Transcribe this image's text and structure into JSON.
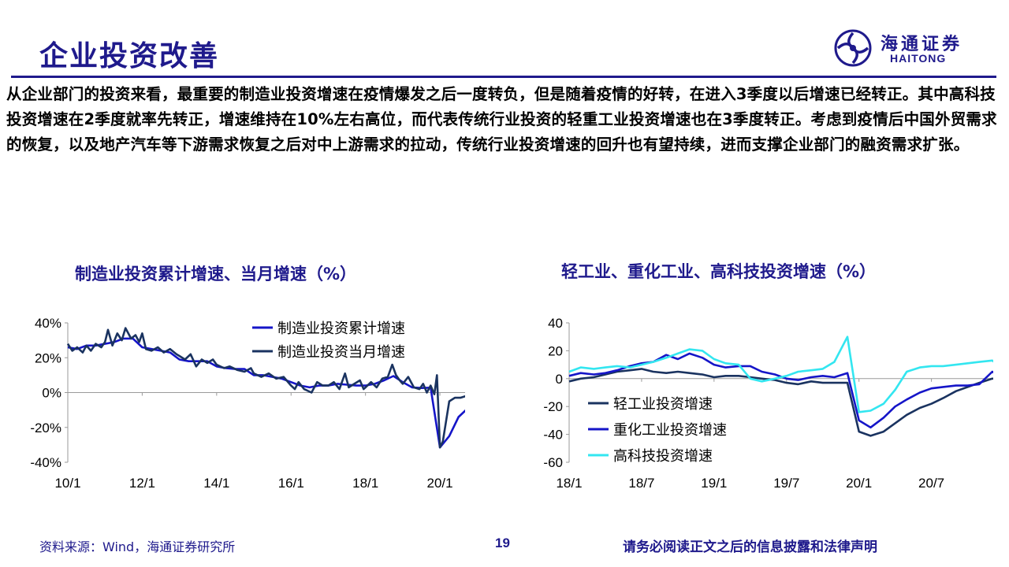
{
  "header": {
    "title": "企业投资改善",
    "logo_cn": "海通证券",
    "logo_en": "HAITONG"
  },
  "body_text": "从企业部门的投资来看，最重要的制造业投资增速在疫情爆发之后一度转负，但是随着疫情的好转，在进入3季度以后增速已经转正。其中高科技投资增速在2季度就率先转正，增速维持在10%左右高位，而代表传统行业投资的轻重工业投资增速也在3季度转正。考虑到疫情后中国外贸需求的恢复，以及地产汽车等下游需求恢复之后对中上游需求的拉动，传统行业投资增速的回升也有望持续，进而支撑企业部门的融资需求扩张。",
  "footer": {
    "source": "资料来源：Wind，海通证券研究所",
    "page": "19",
    "legal": "请务必阅读正文之后的信息披露和法律声明"
  },
  "chart_data": [
    {
      "type": "line",
      "title": "制造业投资累计增速、当月增速（%）",
      "ylim": [
        -40,
        40
      ],
      "yticks": [
        "40%",
        "20%",
        "0%",
        "-20%",
        "-40%"
      ],
      "ytick_values": [
        40,
        20,
        0,
        -20,
        -40
      ],
      "xlim": [
        2010.0,
        2021.1
      ],
      "xtick_labels": [
        "10/1",
        "12/1",
        "14/1",
        "16/1",
        "18/1",
        "20/1"
      ],
      "xtick_values": [
        2010,
        2012,
        2014,
        2016,
        2018,
        2020
      ],
      "legend": "top-right",
      "grid": false,
      "series": [
        {
          "name": "制造业投资累计增速",
          "color": "#1515c8",
          "points": [
            [
              2010.0,
              26
            ],
            [
              2010.25,
              25
            ],
            [
              2010.5,
              27
            ],
            [
              2010.75,
              27
            ],
            [
              2011.0,
              28
            ],
            [
              2011.25,
              29
            ],
            [
              2011.5,
              31
            ],
            [
              2011.75,
              31
            ],
            [
              2012.0,
              26
            ],
            [
              2012.25,
              25
            ],
            [
              2012.5,
              24
            ],
            [
              2012.75,
              23
            ],
            [
              2013.0,
              19
            ],
            [
              2013.25,
              18
            ],
            [
              2013.5,
              18
            ],
            [
              2013.75,
              18
            ],
            [
              2014.0,
              15
            ],
            [
              2014.25,
              14
            ],
            [
              2014.5,
              13.5
            ],
            [
              2014.75,
              13.5
            ],
            [
              2015.0,
              10
            ],
            [
              2015.25,
              10
            ],
            [
              2015.5,
              9
            ],
            [
              2015.75,
              8
            ],
            [
              2016.0,
              6
            ],
            [
              2016.25,
              4
            ],
            [
              2016.5,
              3
            ],
            [
              2016.75,
              4
            ],
            [
              2017.0,
              4
            ],
            [
              2017.25,
              5
            ],
            [
              2017.5,
              4.5
            ],
            [
              2017.75,
              4
            ],
            [
              2018.0,
              4
            ],
            [
              2018.25,
              5
            ],
            [
              2018.5,
              7
            ],
            [
              2018.75,
              9.5
            ],
            [
              2019.0,
              6
            ],
            [
              2019.25,
              3
            ],
            [
              2019.5,
              2.6
            ],
            [
              2019.75,
              2.8
            ],
            [
              2020.0,
              -31.5
            ],
            [
              2020.25,
              -25
            ],
            [
              2020.5,
              -14
            ],
            [
              2020.75,
              -9
            ],
            [
              2021.0,
              -6.5
            ]
          ]
        },
        {
          "name": "制造业投资当月增速",
          "color": "#1a3360",
          "points": [
            [
              2010.0,
              28
            ],
            [
              2010.12,
              24
            ],
            [
              2010.25,
              26
            ],
            [
              2010.4,
              23
            ],
            [
              2010.5,
              27
            ],
            [
              2010.62,
              24
            ],
            [
              2010.75,
              28
            ],
            [
              2010.9,
              26
            ],
            [
              2011.0,
              29
            ],
            [
              2011.08,
              36
            ],
            [
              2011.2,
              27
            ],
            [
              2011.33,
              34
            ],
            [
              2011.45,
              30
            ],
            [
              2011.55,
              37
            ],
            [
              2011.7,
              31
            ],
            [
              2011.82,
              33
            ],
            [
              2011.92,
              29
            ],
            [
              2012.0,
              34
            ],
            [
              2012.1,
              25
            ],
            [
              2012.25,
              24
            ],
            [
              2012.42,
              26
            ],
            [
              2012.58,
              23
            ],
            [
              2012.75,
              25
            ],
            [
              2012.92,
              22
            ],
            [
              2013.0,
              21
            ],
            [
              2013.15,
              19
            ],
            [
              2013.3,
              22
            ],
            [
              2013.45,
              15
            ],
            [
              2013.6,
              19
            ],
            [
              2013.75,
              17
            ],
            [
              2013.9,
              19
            ],
            [
              2014.0,
              16
            ],
            [
              2014.2,
              14
            ],
            [
              2014.35,
              15
            ],
            [
              2014.55,
              13
            ],
            [
              2014.75,
              12
            ],
            [
              2014.92,
              14
            ],
            [
              2015.0,
              11
            ],
            [
              2015.2,
              9
            ],
            [
              2015.4,
              11
            ],
            [
              2015.6,
              8
            ],
            [
              2015.8,
              9
            ],
            [
              2016.0,
              4
            ],
            [
              2016.1,
              2
            ],
            [
              2016.2,
              6
            ],
            [
              2016.35,
              2
            ],
            [
              2016.55,
              0
            ],
            [
              2016.7,
              6
            ],
            [
              2016.85,
              4
            ],
            [
              2017.0,
              4
            ],
            [
              2017.15,
              6
            ],
            [
              2017.3,
              2
            ],
            [
              2017.45,
              11
            ],
            [
              2017.55,
              3
            ],
            [
              2017.7,
              5
            ],
            [
              2017.85,
              7
            ],
            [
              2017.95,
              2
            ],
            [
              2018.0,
              3
            ],
            [
              2018.15,
              6
            ],
            [
              2018.3,
              3
            ],
            [
              2018.45,
              8
            ],
            [
              2018.6,
              9
            ],
            [
              2018.72,
              16
            ],
            [
              2018.82,
              10
            ],
            [
              2018.92,
              7
            ],
            [
              2019.0,
              5
            ],
            [
              2019.15,
              9
            ],
            [
              2019.3,
              3
            ],
            [
              2019.45,
              2
            ],
            [
              2019.55,
              5
            ],
            [
              2019.65,
              0
            ],
            [
              2019.75,
              4
            ],
            [
              2019.85,
              -1
            ],
            [
              2019.92,
              10
            ],
            [
              2020.0,
              -31.5
            ],
            [
              2020.08,
              -28
            ],
            [
              2020.25,
              -5
            ],
            [
              2020.4,
              -3
            ],
            [
              2020.55,
              -3
            ],
            [
              2020.7,
              -2
            ],
            [
              2020.83,
              5
            ],
            [
              2020.92,
              3
            ]
          ]
        }
      ]
    },
    {
      "type": "line",
      "title": "轻工业、重化工业、高科技投资增速（%）",
      "ylim": [
        -60,
        40
      ],
      "yticks": [
        "40",
        "20",
        "0",
        "-20",
        "-40",
        "-60"
      ],
      "ytick_values": [
        40,
        20,
        0,
        -20,
        -40,
        -60
      ],
      "xlim": [
        2018.0,
        2020.97
      ],
      "xtick_labels": [
        "18/1",
        "18/7",
        "19/1",
        "19/7",
        "20/1",
        "20/7"
      ],
      "xtick_values": [
        2018.0,
        2018.5,
        2019.0,
        2019.5,
        2020.0,
        2020.5
      ],
      "legend": "bottom-left",
      "grid": false,
      "series": [
        {
          "name": "轻工业投资增速",
          "color": "#1a3360",
          "points": [
            [
              2018.0,
              -2
            ],
            [
              2018.08,
              0
            ],
            [
              2018.17,
              1
            ],
            [
              2018.25,
              3
            ],
            [
              2018.33,
              5
            ],
            [
              2018.42,
              6
            ],
            [
              2018.5,
              7
            ],
            [
              2018.58,
              5
            ],
            [
              2018.67,
              4
            ],
            [
              2018.75,
              5
            ],
            [
              2018.83,
              4
            ],
            [
              2018.92,
              3
            ],
            [
              2019.0,
              1
            ],
            [
              2019.08,
              2
            ],
            [
              2019.17,
              2
            ],
            [
              2019.25,
              1
            ],
            [
              2019.33,
              0
            ],
            [
              2019.42,
              -1
            ],
            [
              2019.5,
              -3
            ],
            [
              2019.58,
              -4
            ],
            [
              2019.67,
              -2
            ],
            [
              2019.75,
              -3
            ],
            [
              2019.83,
              -3
            ],
            [
              2019.92,
              -3
            ],
            [
              2020.0,
              -38
            ],
            [
              2020.08,
              -41
            ],
            [
              2020.17,
              -38
            ],
            [
              2020.25,
              -32
            ],
            [
              2020.33,
              -26
            ],
            [
              2020.42,
              -21
            ],
            [
              2020.5,
              -18
            ],
            [
              2020.58,
              -14
            ],
            [
              2020.67,
              -9
            ],
            [
              2020.75,
              -6
            ],
            [
              2020.83,
              -3
            ],
            [
              2020.92,
              0
            ],
            [
              2020.97,
              0
            ]
          ]
        },
        {
          "name": "重化工业投资增速",
          "color": "#1515c8",
          "points": [
            [
              2018.0,
              2
            ],
            [
              2018.08,
              4
            ],
            [
              2018.17,
              3
            ],
            [
              2018.25,
              4
            ],
            [
              2018.33,
              6
            ],
            [
              2018.42,
              9
            ],
            [
              2018.5,
              11
            ],
            [
              2018.58,
              12
            ],
            [
              2018.67,
              17
            ],
            [
              2018.75,
              14
            ],
            [
              2018.83,
              18
            ],
            [
              2018.92,
              15
            ],
            [
              2019.0,
              10
            ],
            [
              2019.08,
              8
            ],
            [
              2019.17,
              9
            ],
            [
              2019.25,
              9
            ],
            [
              2019.33,
              5
            ],
            [
              2019.42,
              3
            ],
            [
              2019.5,
              0
            ],
            [
              2019.58,
              -1
            ],
            [
              2019.67,
              1
            ],
            [
              2019.75,
              2
            ],
            [
              2019.83,
              1
            ],
            [
              2019.92,
              4
            ],
            [
              2020.0,
              -30
            ],
            [
              2020.08,
              -35
            ],
            [
              2020.17,
              -28
            ],
            [
              2020.25,
              -20
            ],
            [
              2020.33,
              -15
            ],
            [
              2020.42,
              -10
            ],
            [
              2020.5,
              -7
            ],
            [
              2020.58,
              -6
            ],
            [
              2020.67,
              -5
            ],
            [
              2020.75,
              -5
            ],
            [
              2020.83,
              -4
            ],
            [
              2020.92,
              5
            ],
            [
              2020.97,
              2
            ]
          ]
        },
        {
          "name": "高科技投资增速",
          "color": "#33e6f0",
          "points": [
            [
              2018.0,
              5
            ],
            [
              2018.08,
              8
            ],
            [
              2018.17,
              7
            ],
            [
              2018.25,
              8
            ],
            [
              2018.33,
              9
            ],
            [
              2018.42,
              8
            ],
            [
              2018.5,
              10
            ],
            [
              2018.58,
              12
            ],
            [
              2018.67,
              15
            ],
            [
              2018.75,
              18
            ],
            [
              2018.83,
              21
            ],
            [
              2018.92,
              20
            ],
            [
              2019.0,
              14
            ],
            [
              2019.08,
              11
            ],
            [
              2019.17,
              10
            ],
            [
              2019.25,
              0
            ],
            [
              2019.33,
              -2
            ],
            [
              2019.42,
              0
            ],
            [
              2019.5,
              2
            ],
            [
              2019.58,
              5
            ],
            [
              2019.67,
              6
            ],
            [
              2019.75,
              7
            ],
            [
              2019.83,
              12
            ],
            [
              2019.92,
              30
            ],
            [
              2020.0,
              -24
            ],
            [
              2020.08,
              -23
            ],
            [
              2020.17,
              -18
            ],
            [
              2020.25,
              -8
            ],
            [
              2020.33,
              5
            ],
            [
              2020.42,
              8
            ],
            [
              2020.5,
              9
            ],
            [
              2020.58,
              9
            ],
            [
              2020.67,
              10
            ],
            [
              2020.75,
              11
            ],
            [
              2020.83,
              12
            ],
            [
              2020.92,
              13
            ],
            [
              2020.97,
              9
            ]
          ]
        }
      ]
    }
  ]
}
